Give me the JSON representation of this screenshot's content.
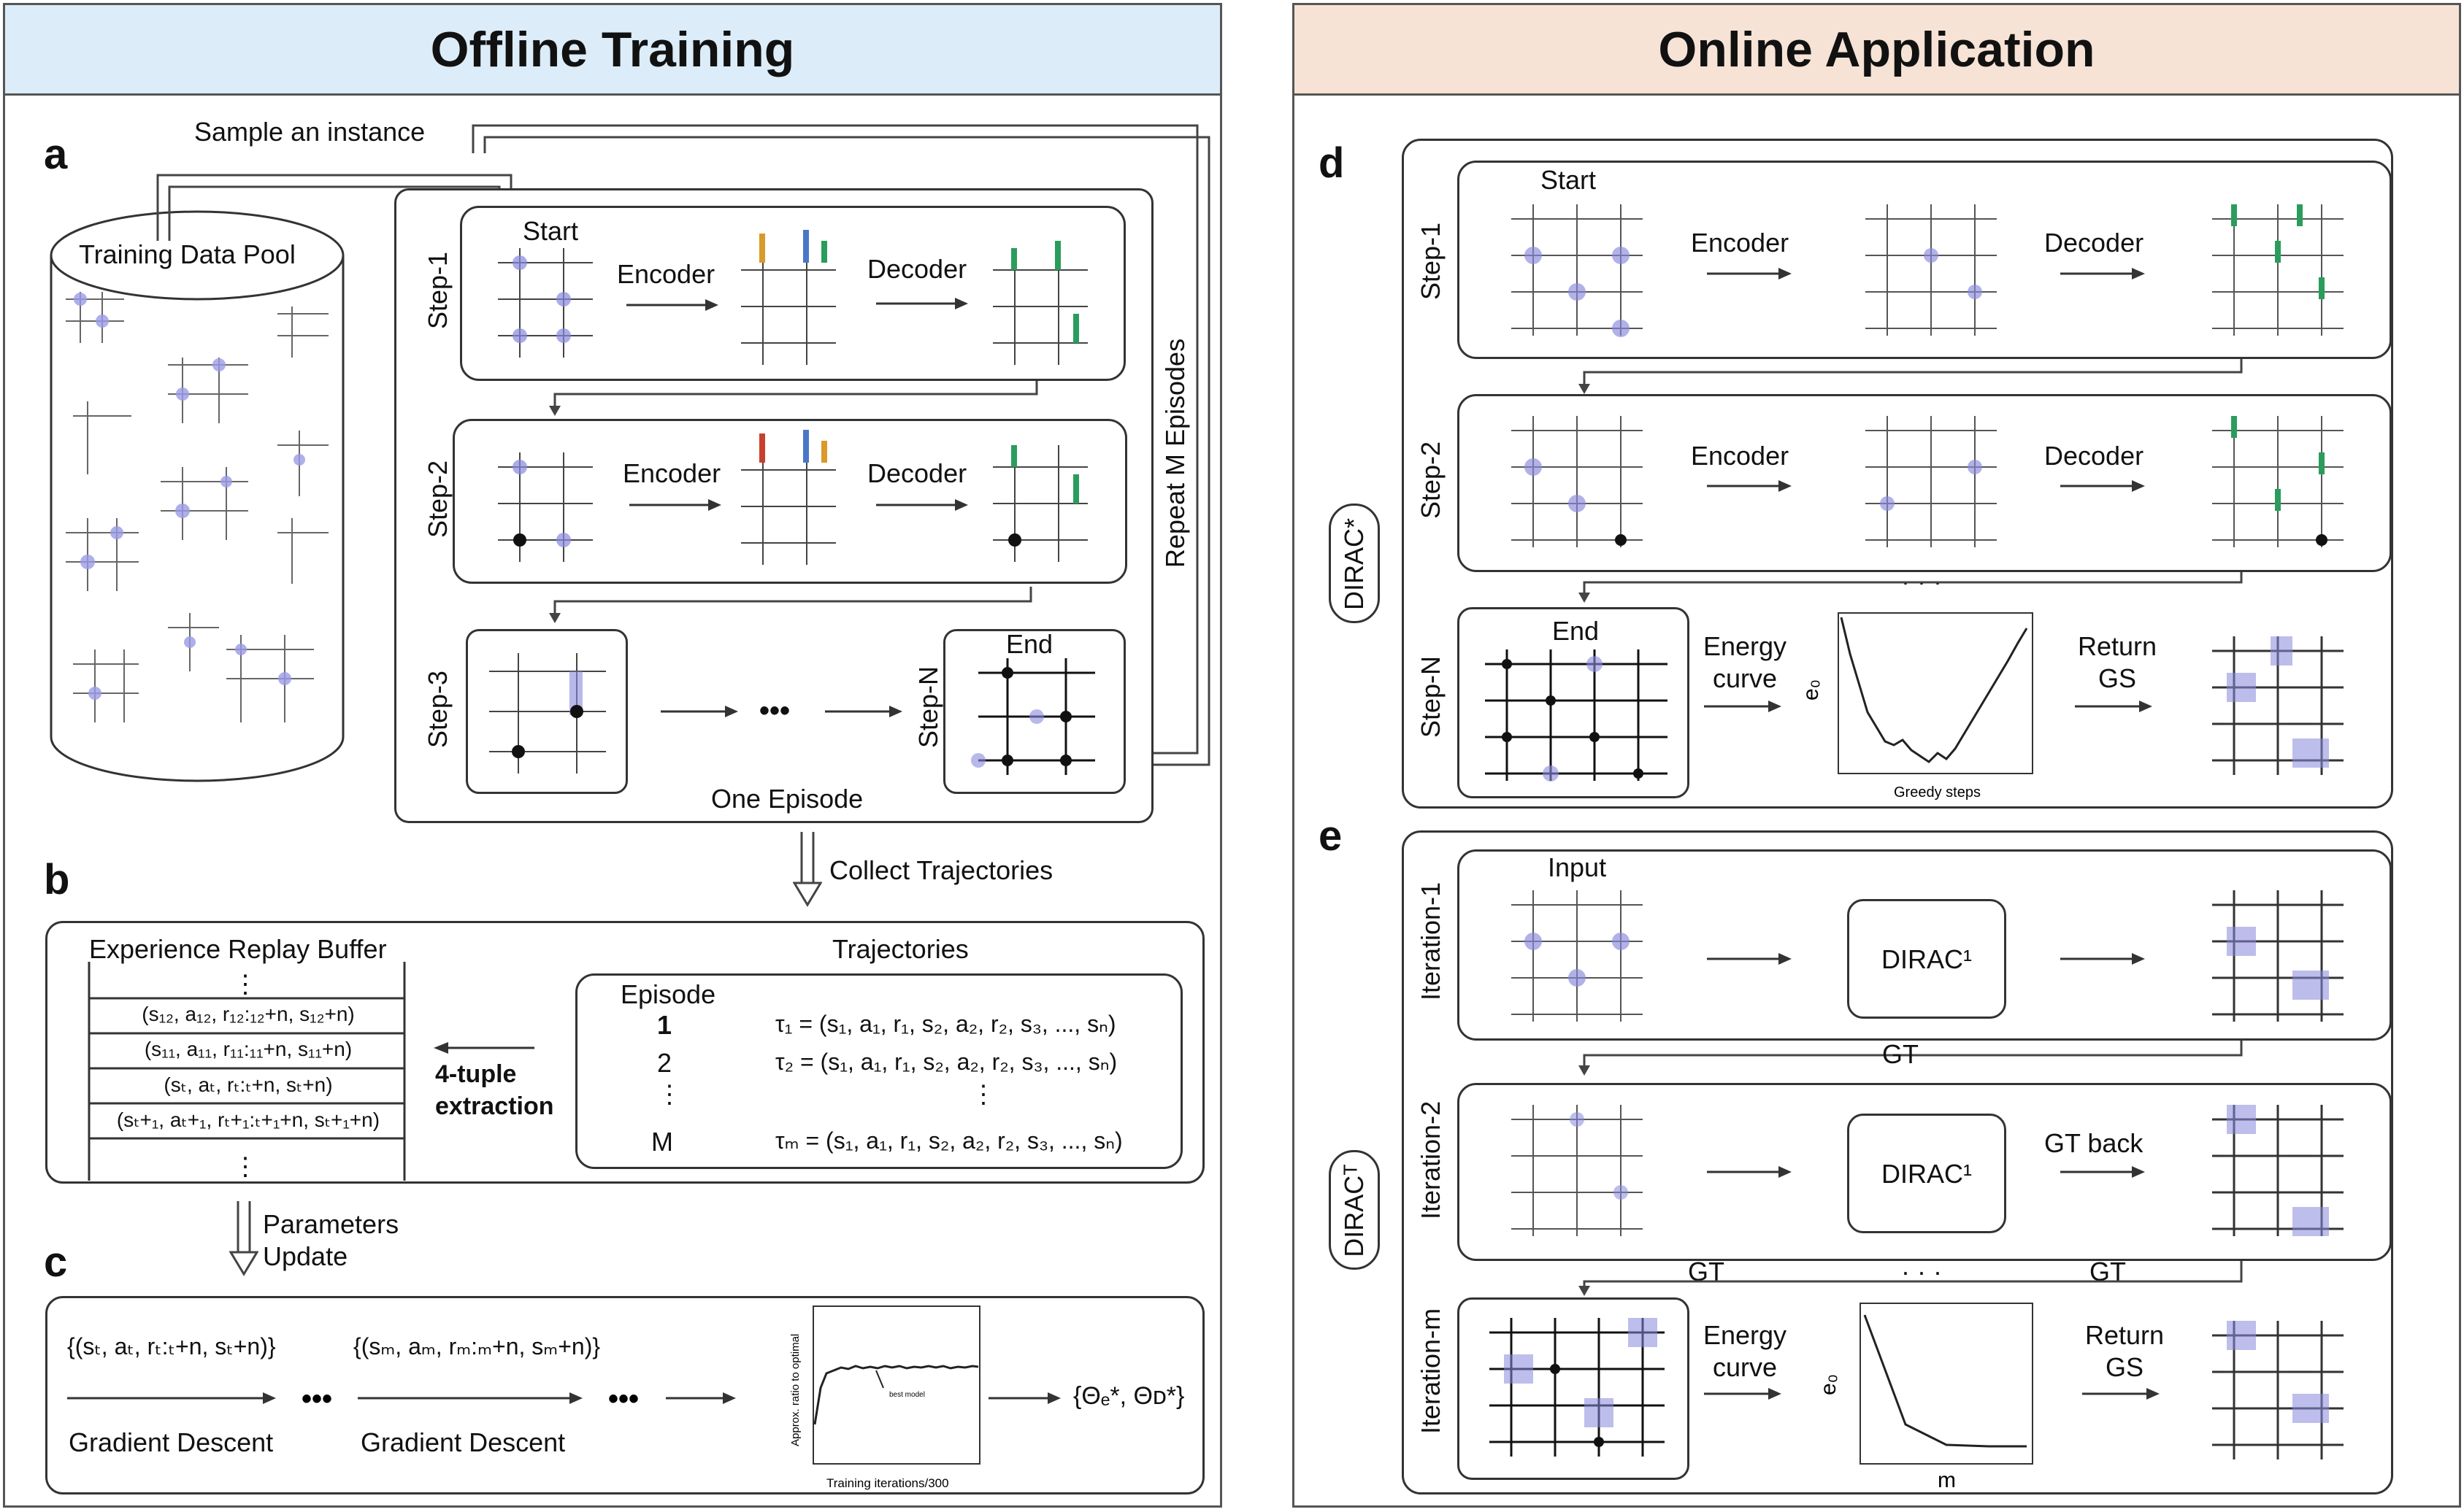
{
  "offline": {
    "title": "Offline Training",
    "a": {
      "letter": "a",
      "sample_label": "Sample an instance",
      "pool_label": "Training Data Pool",
      "step1": "Step-1",
      "step2": "Step-2",
      "step3": "Step-3",
      "stepN": "Step-N",
      "start": "Start",
      "end": "End",
      "encoder": "Encoder",
      "decoder": "Decoder",
      "one_episode": "One Episode",
      "repeat": "Repeat M Episodes",
      "dots": "•••"
    },
    "b": {
      "letter": "b",
      "collect": "Collect Trajectories",
      "buffer_title": "Experience Replay Buffer",
      "buffer_rows": [
        "(s₁₂, a₁₂, r₁₂:₁₂+n, s₁₂+n)",
        "(s₁₁, a₁₁, r₁₁:₁₁+n, s₁₁+n)",
        "(sₜ, aₜ, rₜ:ₜ+n, sₜ+n)",
        "(sₜ+₁, aₜ+₁, rₜ+₁:ₜ+₁+n, sₜ+₁+n)"
      ],
      "extraction": "4-tuple extraction",
      "traj_title": "Trajectories",
      "episode_label": "Episode",
      "episodes": [
        "1",
        "2",
        "M"
      ],
      "taus": [
        "τ₁ = (s₁, a₁, r₁, s₂, a₂, r₂, s₃, ..., sₙ)",
        "τ₂ = (s₁, a₁, r₁, s₂, a₂, r₂, s₃, ..., sₙ)",
        "τₘ = (s₁, a₁, r₁, s₂, a₂, r₂, s₃, ..., sₙ)"
      ]
    },
    "c": {
      "letter": "c",
      "params": "Parameters Update",
      "batch1": "{(sₜ, aₜ, rₜ:ₜ+n, sₜ+n)}",
      "batch2": "{(sₘ, aₘ, rₘ:ₘ+n, sₘ+n)}",
      "gd": "Gradient Descent",
      "result": "{Θₑ*, Θᴅ*}",
      "mini_ylabel": "Approx. ratio to optimal",
      "mini_xlabel": "Training iterations/300",
      "mini_annot": "best model"
    }
  },
  "online": {
    "title": "Online Application",
    "d": {
      "letter": "d",
      "tag": "DIRAC*",
      "start": "Start",
      "end": "End",
      "step1": "Step-1",
      "step2": "Step-2",
      "stepN": "Step-N",
      "encoder": "Encoder",
      "decoder": "Decoder",
      "energy": "Energy curve",
      "return_gs": "Return GS",
      "ellipsis": "· · ·",
      "curve_ylabel": "e₀",
      "curve_xlabel": "Greedy steps"
    },
    "e": {
      "letter": "e",
      "tag": "DIRACᵀ",
      "input": "Input",
      "iter1": "Iteration-1",
      "iter2": "Iteration-2",
      "iterm": "Iteration-m",
      "dirac": "DIRAC¹",
      "gt": "GT",
      "gt_back": "GT back",
      "energy": "Energy curve",
      "return_gs": "Return GS",
      "ellipsis": "· · ·",
      "curve_ylabel": "e₀",
      "curve_xlabel": "m"
    }
  },
  "colors": {
    "offline_header": "#dcecf8",
    "online_header": "#f7e3d6",
    "grid_blue": "#8888dd",
    "grid_green": "#2a9d5c"
  }
}
